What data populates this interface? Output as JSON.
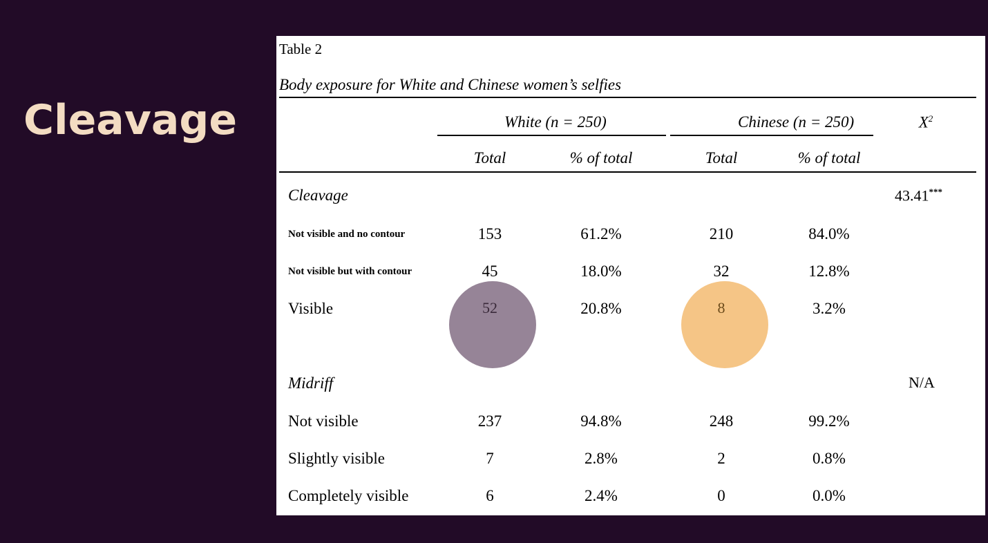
{
  "slide": {
    "title": "Cleavage"
  },
  "table": {
    "label": "Table 2",
    "caption": "Body exposure for White and Chinese women’s selfies",
    "groups": [
      "White (n = 250)",
      "Chinese (n = 250)"
    ],
    "chi_header": "X",
    "chi_sup": "2",
    "subheaders": [
      "Total",
      "% of total",
      "Total",
      "% of total"
    ],
    "sections": [
      {
        "name": "Cleavage",
        "chi": "43.41",
        "chi_sig": "***",
        "rows": [
          {
            "label": "Not visible and no contour",
            "values": [
              "153",
              "61.2%",
              "210",
              "84.0%"
            ]
          },
          {
            "label": "Not visible but with contour",
            "values": [
              "45",
              "18.0%",
              "32",
              "12.8%"
            ]
          },
          {
            "label": "Visible",
            "values": [
              "52",
              "20.8%",
              "8",
              "3.2%"
            ]
          }
        ]
      },
      {
        "name": "Midriff",
        "chi": "N/A",
        "rows": [
          {
            "label": "Not visible",
            "values": [
              "237",
              "94.8%",
              "248",
              "99.2%"
            ]
          },
          {
            "label": "Slightly visible",
            "values": [
              "7",
              "2.8%",
              "2",
              "0.8%"
            ]
          },
          {
            "label": "Completely visible",
            "values": [
              "6",
              "2.4%",
              "0",
              "0.0%"
            ]
          }
        ]
      }
    ]
  },
  "highlights": {
    "white_color": "#968497",
    "chinese_color": "#f5c586"
  }
}
